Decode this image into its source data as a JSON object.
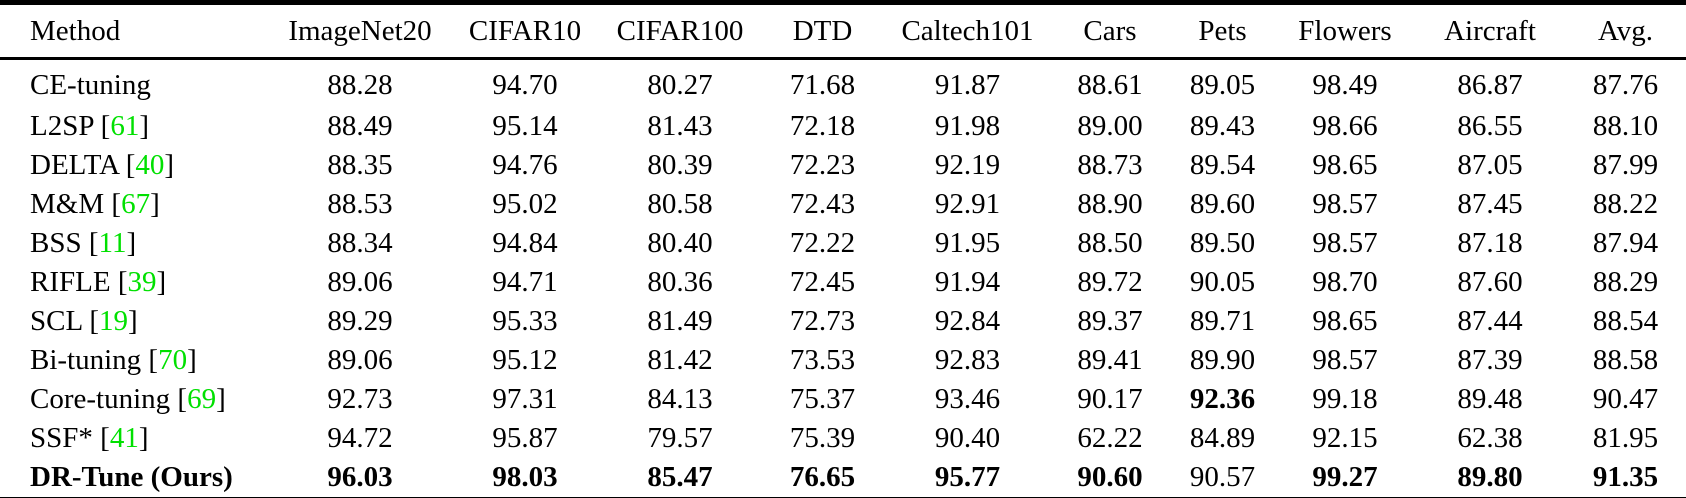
{
  "colors": {
    "citation": "#00e000",
    "text": "#000000",
    "background": "#ffffff",
    "rule": "#000000"
  },
  "table": {
    "columns": [
      "Method",
      "ImageNet20",
      "CIFAR10",
      "CIFAR100",
      "DTD",
      "Caltech101",
      "Cars",
      "Pets",
      "Flowers",
      "Aircraft",
      "Avg."
    ],
    "rows": [
      {
        "method": "CE-tuning",
        "citation": "",
        "bold_method": false,
        "values": [
          "88.28",
          "94.70",
          "80.27",
          "71.68",
          "91.87",
          "88.61",
          "89.05",
          "98.49",
          "86.87",
          "87.76"
        ],
        "bold_values": []
      },
      {
        "method": "L2SP",
        "citation": "61",
        "bold_method": false,
        "values": [
          "88.49",
          "95.14",
          "81.43",
          "72.18",
          "91.98",
          "89.00",
          "89.43",
          "98.66",
          "86.55",
          "88.10"
        ],
        "bold_values": []
      },
      {
        "method": "DELTA",
        "citation": "40",
        "bold_method": false,
        "values": [
          "88.35",
          "94.76",
          "80.39",
          "72.23",
          "92.19",
          "88.73",
          "89.54",
          "98.65",
          "87.05",
          "87.99"
        ],
        "bold_values": []
      },
      {
        "method": "M&M",
        "citation": "67",
        "bold_method": false,
        "values": [
          "88.53",
          "95.02",
          "80.58",
          "72.43",
          "92.91",
          "88.90",
          "89.60",
          "98.57",
          "87.45",
          "88.22"
        ],
        "bold_values": []
      },
      {
        "method": "BSS",
        "citation": "11",
        "bold_method": false,
        "values": [
          "88.34",
          "94.84",
          "80.40",
          "72.22",
          "91.95",
          "88.50",
          "89.50",
          "98.57",
          "87.18",
          "87.94"
        ],
        "bold_values": []
      },
      {
        "method": "RIFLE",
        "citation": "39",
        "bold_method": false,
        "values": [
          "89.06",
          "94.71",
          "80.36",
          "72.45",
          "91.94",
          "89.72",
          "90.05",
          "98.70",
          "87.60",
          "88.29"
        ],
        "bold_values": []
      },
      {
        "method": "SCL",
        "citation": "19",
        "bold_method": false,
        "values": [
          "89.29",
          "95.33",
          "81.49",
          "72.73",
          "92.84",
          "89.37",
          "89.71",
          "98.65",
          "87.44",
          "88.54"
        ],
        "bold_values": []
      },
      {
        "method": "Bi-tuning",
        "citation": "70",
        "bold_method": false,
        "values": [
          "89.06",
          "95.12",
          "81.42",
          "73.53",
          "92.83",
          "89.41",
          "89.90",
          "98.57",
          "87.39",
          "88.58"
        ],
        "bold_values": []
      },
      {
        "method": "Core-tuning",
        "citation": "69",
        "bold_method": false,
        "values": [
          "92.73",
          "97.31",
          "84.13",
          "75.37",
          "93.46",
          "90.17",
          "92.36",
          "99.18",
          "89.48",
          "90.47"
        ],
        "bold_values": [
          6
        ]
      },
      {
        "method": "SSF*",
        "citation": "41",
        "bold_method": false,
        "values": [
          "94.72",
          "95.87",
          "79.57",
          "75.39",
          "90.40",
          "62.22",
          "84.89",
          "92.15",
          "62.38",
          "81.95"
        ],
        "bold_values": []
      },
      {
        "method": "DR-Tune (Ours)",
        "citation": "",
        "bold_method": true,
        "values": [
          "96.03",
          "98.03",
          "85.47",
          "76.65",
          "95.77",
          "90.60",
          "90.57",
          "99.27",
          "89.80",
          "91.35"
        ],
        "bold_values": [
          0,
          1,
          2,
          3,
          4,
          5,
          7,
          8,
          9
        ]
      }
    ]
  }
}
